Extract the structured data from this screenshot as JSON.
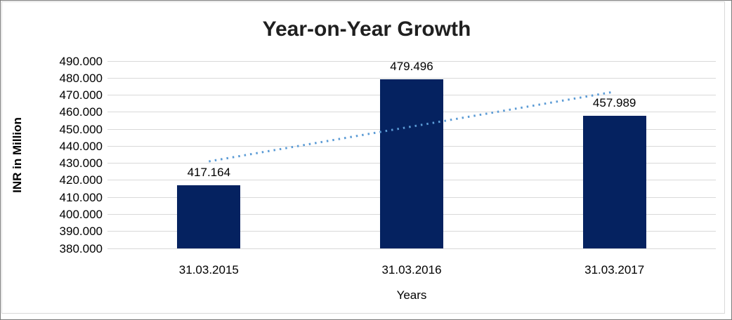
{
  "window": {
    "background_color": "#ffffff",
    "outer_border_color": "#7a7a7a",
    "inner_frame_color": "#d9d9d9"
  },
  "chart_data": {
    "type": "bar",
    "title": "Year-on-Year Growth",
    "xlabel": "Years",
    "ylabel": "INR in Million",
    "categories": [
      "31.03.2015",
      "31.03.2016",
      "31.03.2017"
    ],
    "values": [
      417.164,
      479.496,
      457.989
    ],
    "data_labels": [
      "417.164",
      "479.496",
      "457.989"
    ],
    "ylim": [
      380,
      490
    ],
    "y_tick_step": 10,
    "y_tick_labels": [
      "490.000",
      "480.000",
      "470.000",
      "460.000",
      "450.000",
      "440.000",
      "430.000",
      "420.000",
      "410.000",
      "400.000",
      "390.000",
      "380.000"
    ],
    "grid": true,
    "legend": "none",
    "bar_color": "#052260",
    "gridline_color": "#d9d9d9",
    "title_color": "#1f1f1f",
    "axis_text_color": "#000000",
    "trendline": {
      "type": "linear",
      "style": "dotted",
      "color": "#5b9bd5",
      "start_value": 431.1,
      "end_value": 472.0
    }
  }
}
